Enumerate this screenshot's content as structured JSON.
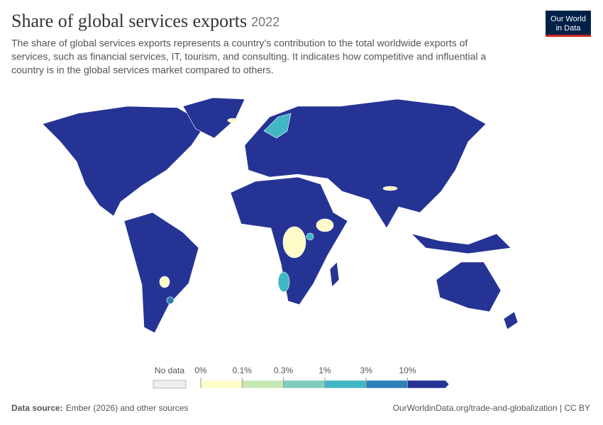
{
  "header": {
    "title": "Share of global services exports",
    "year": "2022",
    "subtitle": [
      "The share of global services exports represents a country’s contribution to the total worldwide exports of",
      "services, such as financial services, IT, tourism, and consulting. It indicates how competitive and influential a",
      "country is in the global services market compared to others."
    ]
  },
  "logo": [
    "Our World",
    "in Data"
  ],
  "legend": {
    "no_data": "No data",
    "ticks": [
      "0%",
      "0.1%",
      "0.3%",
      "1%",
      "3%",
      "10%"
    ],
    "colors": [
      "#fefcc8",
      "#c6e8b4",
      "#7fcdbb",
      "#41b6c4",
      "#2c7fb8",
      "#253494"
    ]
  },
  "footer": {
    "source_label": "Data source:",
    "source": "Ember (2026) and other sources",
    "url": "OurWorldinData.org/trade-and-globalization | CC BY"
  }
}
